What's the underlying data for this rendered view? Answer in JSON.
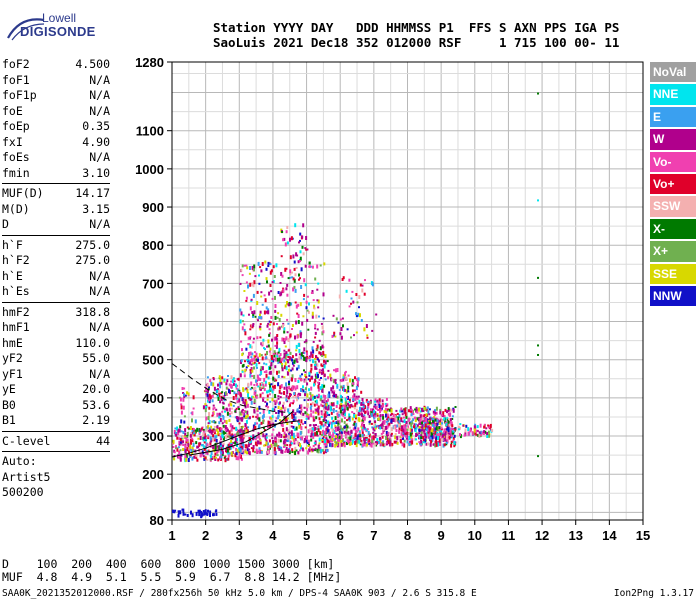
{
  "logo": {
    "line1": "Lowell",
    "line2": "DIGISONDE"
  },
  "header": {
    "line1": "Station YYYY DAY   DDD HHMMSS P1  FFS S AXN PPS IGA PS",
    "line2": "SaoLuis 2021 Dec18 352 012000 RSF     1 715 100 00- 11"
  },
  "params": {
    "group1": [
      {
        "name": "foF2",
        "value": "4.500"
      },
      {
        "name": "foF1",
        "value": "N/A"
      },
      {
        "name": "foF1p",
        "value": "N/A"
      },
      {
        "name": "foE",
        "value": "N/A"
      },
      {
        "name": "foEp",
        "value": "0.35"
      },
      {
        "name": "fxI",
        "value": "4.90"
      },
      {
        "name": "foEs",
        "value": "N/A"
      },
      {
        "name": "fmin",
        "value": "3.10"
      }
    ],
    "group2": [
      {
        "name": "MUF(D)",
        "value": "14.17"
      },
      {
        "name": "M(D)",
        "value": "3.15"
      },
      {
        "name": "D",
        "value": "N/A"
      }
    ],
    "group3": [
      {
        "name": "h`F",
        "value": "275.0"
      },
      {
        "name": "h`F2",
        "value": "275.0"
      },
      {
        "name": "h`E",
        "value": "N/A"
      },
      {
        "name": "h`Es",
        "value": "N/A"
      }
    ],
    "group4": [
      {
        "name": "hmF2",
        "value": "318.8"
      },
      {
        "name": "hmF1",
        "value": "N/A"
      },
      {
        "name": "hmE",
        "value": "110.0"
      },
      {
        "name": "yF2",
        "value": "55.0"
      },
      {
        "name": "yF1",
        "value": "N/A"
      },
      {
        "name": "yE",
        "value": "20.0"
      },
      {
        "name": "B0",
        "value": "53.6"
      },
      {
        "name": "B1",
        "value": "2.19"
      }
    ],
    "group5": [
      {
        "name": "C-level",
        "value": "44"
      }
    ],
    "auto": [
      "Auto:",
      "Artist5",
      "500200"
    ]
  },
  "legend": [
    {
      "label": "NoVal",
      "color": "#a0a0a0"
    },
    {
      "label": "NNE",
      "color": "#00e5ee"
    },
    {
      "label": "E",
      "color": "#3aa0f0"
    },
    {
      "label": "W",
      "color": "#b0008c"
    },
    {
      "label": "Vo-",
      "color": "#f040b0"
    },
    {
      "label": "Vo+",
      "color": "#e0002a"
    },
    {
      "label": "SSW",
      "color": "#f4b0b0"
    },
    {
      "label": "X-",
      "color": "#007a00"
    },
    {
      "label": "X+",
      "color": "#70b050"
    },
    {
      "label": "SSE",
      "color": "#d8d800"
    },
    {
      "label": "NNW",
      "color": "#1010c8"
    }
  ],
  "dmuf": {
    "line1": "D    100  200  400  600  800 1000 1500 3000 [km]",
    "line2": "MUF  4.8  4.9  5.1  5.5  5.9  6.7  8.8 14.2 [MHz]"
  },
  "footer": {
    "left": "SAA0K_2021352012000.RSF / 280fx256h 50 kHz 5.0 km / DPS-4 SAA0K 903 / 2.6 S 315.8 E",
    "right": "Ion2Png 1.3.17"
  },
  "chart_data": {
    "type": "scatter",
    "xlim": [
      1,
      15
    ],
    "ylim": [
      80,
      1280
    ],
    "x_ticks": [
      1,
      2,
      3,
      4,
      5,
      6,
      7,
      8,
      9,
      10,
      11,
      12,
      13,
      14,
      15
    ],
    "y_ticks": [
      80,
      200,
      300,
      400,
      500,
      600,
      700,
      800,
      900,
      1000,
      1100,
      1280
    ],
    "grid": true,
    "legend_position": "right",
    "clusters": [
      {
        "xmin": 1.0,
        "xmax": 3.1,
        "ymin": 240,
        "ymax": 330,
        "count": 380
      },
      {
        "xmin": 1.9,
        "xmax": 3.0,
        "ymin": 300,
        "ymax": 460,
        "count": 200
      },
      {
        "xmin": 1.2,
        "xmax": 1.7,
        "ymin": 330,
        "ymax": 430,
        "count": 25
      },
      {
        "xmin": 3.0,
        "xmax": 5.6,
        "ymin": 260,
        "ymax": 520,
        "count": 900
      },
      {
        "xmin": 3.0,
        "xmax": 5.5,
        "ymin": 500,
        "ymax": 760,
        "count": 360
      },
      {
        "xmin": 4.2,
        "xmax": 5.0,
        "ymin": 730,
        "ymax": 860,
        "count": 40
      },
      {
        "xmin": 5.5,
        "xmax": 7.4,
        "ymin": 280,
        "ymax": 400,
        "count": 520
      },
      {
        "xmin": 5.6,
        "xmax": 6.6,
        "ymin": 400,
        "ymax": 480,
        "count": 80
      },
      {
        "xmin": 5.7,
        "xmax": 7.2,
        "ymin": 560,
        "ymax": 720,
        "count": 50
      },
      {
        "xmin": 7.4,
        "xmax": 9.4,
        "ymin": 280,
        "ymax": 380,
        "count": 400
      },
      {
        "xmin": 8.3,
        "xmax": 9.3,
        "ymin": 300,
        "ymax": 350,
        "count": 180
      },
      {
        "xmin": 9.3,
        "xmax": 10.5,
        "ymin": 305,
        "ymax": 335,
        "count": 70
      },
      {
        "xmin": 1.0,
        "xmax": 2.3,
        "ymin": 95,
        "ymax": 110,
        "count": 40
      }
    ],
    "sparse_points": [
      {
        "x": 11.85,
        "y": 1200,
        "color": "#007a00"
      },
      {
        "x": 11.85,
        "y": 920,
        "color": "#00e5ee"
      },
      {
        "x": 11.85,
        "y": 717,
        "color": "#007a00"
      },
      {
        "x": 11.85,
        "y": 540,
        "color": "#007a00"
      },
      {
        "x": 11.85,
        "y": 515,
        "color": "#007a00"
      },
      {
        "x": 11.85,
        "y": 250,
        "color": "#007a00"
      }
    ],
    "trace_lines": [
      {
        "style": "solid",
        "points": [
          [
            1,
            245
          ],
          [
            1.5,
            255
          ],
          [
            2,
            268
          ],
          [
            2.5,
            285
          ],
          [
            3,
            302
          ],
          [
            3.5,
            318
          ],
          [
            4,
            330
          ],
          [
            4.5,
            337
          ],
          [
            4.8,
            340
          ]
        ]
      },
      {
        "style": "solid",
        "points": [
          [
            1.5,
            250
          ],
          [
            2.5,
            265
          ],
          [
            3.2,
            285
          ],
          [
            3.7,
            310
          ],
          [
            4.2,
            335
          ],
          [
            4.6,
            365
          ]
        ]
      },
      {
        "style": "dashed",
        "points": [
          [
            1,
            490
          ],
          [
            1.6,
            450
          ],
          [
            2.1,
            420
          ],
          [
            2.6,
            395
          ],
          [
            3.1,
            380
          ],
          [
            3.6,
            372
          ],
          [
            4,
            365
          ],
          [
            4.4,
            362
          ]
        ]
      }
    ]
  }
}
